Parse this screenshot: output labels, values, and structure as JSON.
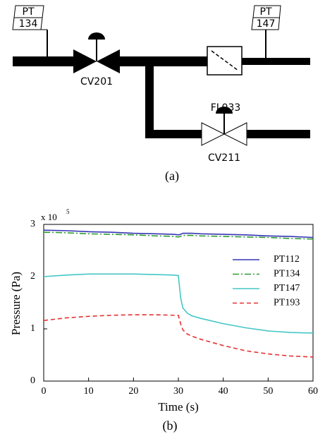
{
  "diagram": {
    "instruments": [
      {
        "tag": "PT",
        "number": "134"
      },
      {
        "tag": "PT",
        "number": "147"
      }
    ],
    "valves": [
      "CV201",
      "CV211"
    ],
    "filter": "FL033",
    "caption": "(a)"
  },
  "chart_data": {
    "type": "line",
    "caption": "(b)",
    "x_label": "Time (s)",
    "y_label": "Pressure (Pa)",
    "y_scale_label": "x 10",
    "y_scale_exponent": "5",
    "x": [
      0,
      5,
      10,
      15,
      20,
      25,
      29,
      30,
      30.5,
      31,
      32,
      33,
      35,
      40,
      45,
      50,
      55,
      60
    ],
    "series": [
      {
        "name": "PT112",
        "color": "#3535b5",
        "style": "solid",
        "values": [
          2.89,
          2.88,
          2.86,
          2.85,
          2.83,
          2.82,
          2.81,
          2.8,
          2.81,
          2.83,
          2.83,
          2.83,
          2.82,
          2.81,
          2.8,
          2.78,
          2.77,
          2.75
        ]
      },
      {
        "name": "PT134",
        "color": "#2e9e2e",
        "style": "dashdot",
        "values": [
          2.85,
          2.84,
          2.82,
          2.81,
          2.8,
          2.78,
          2.77,
          2.76,
          2.77,
          2.79,
          2.79,
          2.79,
          2.78,
          2.77,
          2.76,
          2.75,
          2.73,
          2.72
        ]
      },
      {
        "name": "PT147",
        "color": "#45c6c6",
        "style": "solid",
        "values": [
          2.0,
          2.03,
          2.05,
          2.05,
          2.05,
          2.04,
          2.03,
          2.02,
          1.6,
          1.4,
          1.3,
          1.25,
          1.2,
          1.1,
          1.02,
          0.96,
          0.93,
          0.92
        ]
      },
      {
        "name": "PT193",
        "color": "#e83030",
        "style": "dashed",
        "values": [
          1.16,
          1.21,
          1.24,
          1.26,
          1.27,
          1.27,
          1.26,
          1.26,
          1.1,
          0.98,
          0.9,
          0.86,
          0.8,
          0.68,
          0.58,
          0.52,
          0.48,
          0.46
        ]
      }
    ],
    "xlim": [
      0,
      60
    ],
    "xticks": [
      0,
      10,
      20,
      30,
      40,
      50,
      60
    ],
    "ylim": [
      0,
      3
    ],
    "yticks": [
      0,
      1,
      2,
      3
    ],
    "legend": "right"
  }
}
